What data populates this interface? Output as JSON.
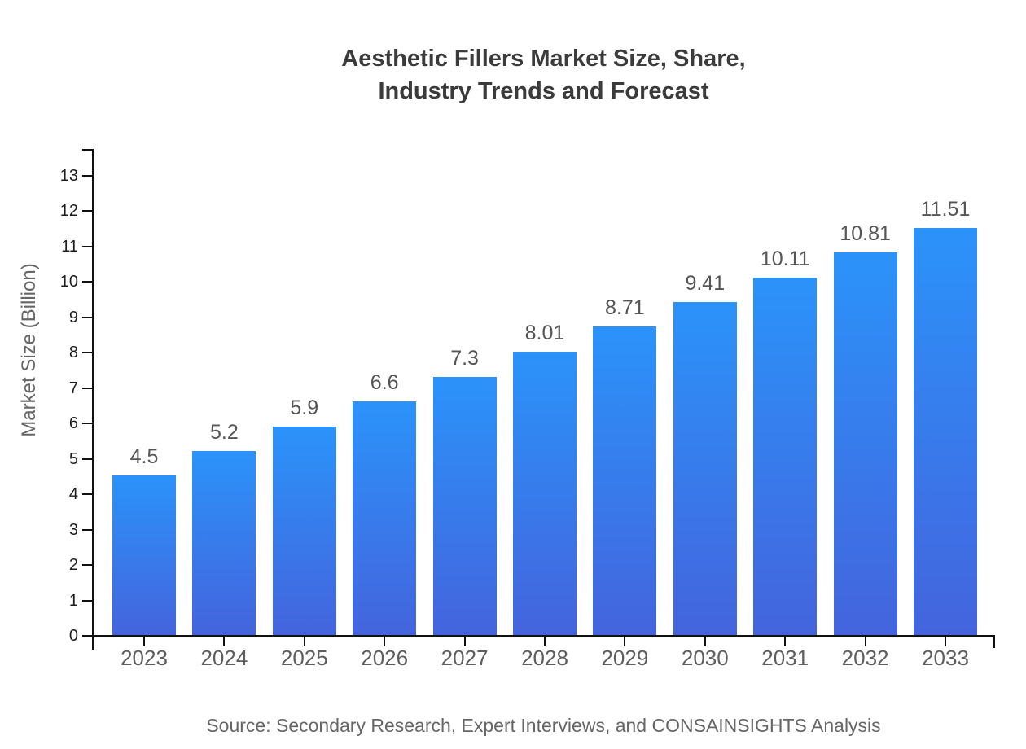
{
  "header": {
    "line1": "Aesthetic Fillers Market Size, Share,",
    "line2": "Industry Trends and Forecast"
  },
  "footer": {
    "source": "Source: Secondary Research, Expert Interviews, and CONSAINSIGHTS Analysis"
  },
  "colors": {
    "bar_top": "#2B93FA",
    "bar_bottom": "#4464DD",
    "axis": "#111111",
    "tick_label": "#1D1D1D",
    "category_label": "#5E5E5E",
    "value_label": "#555555",
    "title": "#3B3B3B",
    "muted_text": "#666666"
  },
  "chart_data": {
    "type": "bar",
    "title": "Aesthetic Fillers Market Size, Share, Industry Trends and Forecast",
    "categories": [
      "2023",
      "2024",
      "2025",
      "2026",
      "2027",
      "2028",
      "2029",
      "2030",
      "2031",
      "2032",
      "2033"
    ],
    "values": [
      4.5,
      5.2,
      5.9,
      6.6,
      7.3,
      8.01,
      8.71,
      9.41,
      10.11,
      10.81,
      11.51
    ],
    "value_labels": [
      "4.5",
      "5.2",
      "5.9",
      "6.6",
      "7.3",
      "8.01",
      "8.71",
      "9.41",
      "10.11",
      "10.81",
      "11.51"
    ],
    "xlabel": "",
    "ylabel": "Market Size (Billion)",
    "ylim": [
      0,
      13
    ],
    "ytick_step": 1,
    "ytick_labels": [
      "0",
      "1",
      "2",
      "3",
      "4",
      "5",
      "6",
      "7",
      "8",
      "9",
      "10",
      "11",
      "12",
      "13"
    ],
    "grid": false,
    "legend": false,
    "source": "Source: Secondary Research, Expert Interviews, and CONSAINSIGHTS Analysis"
  }
}
